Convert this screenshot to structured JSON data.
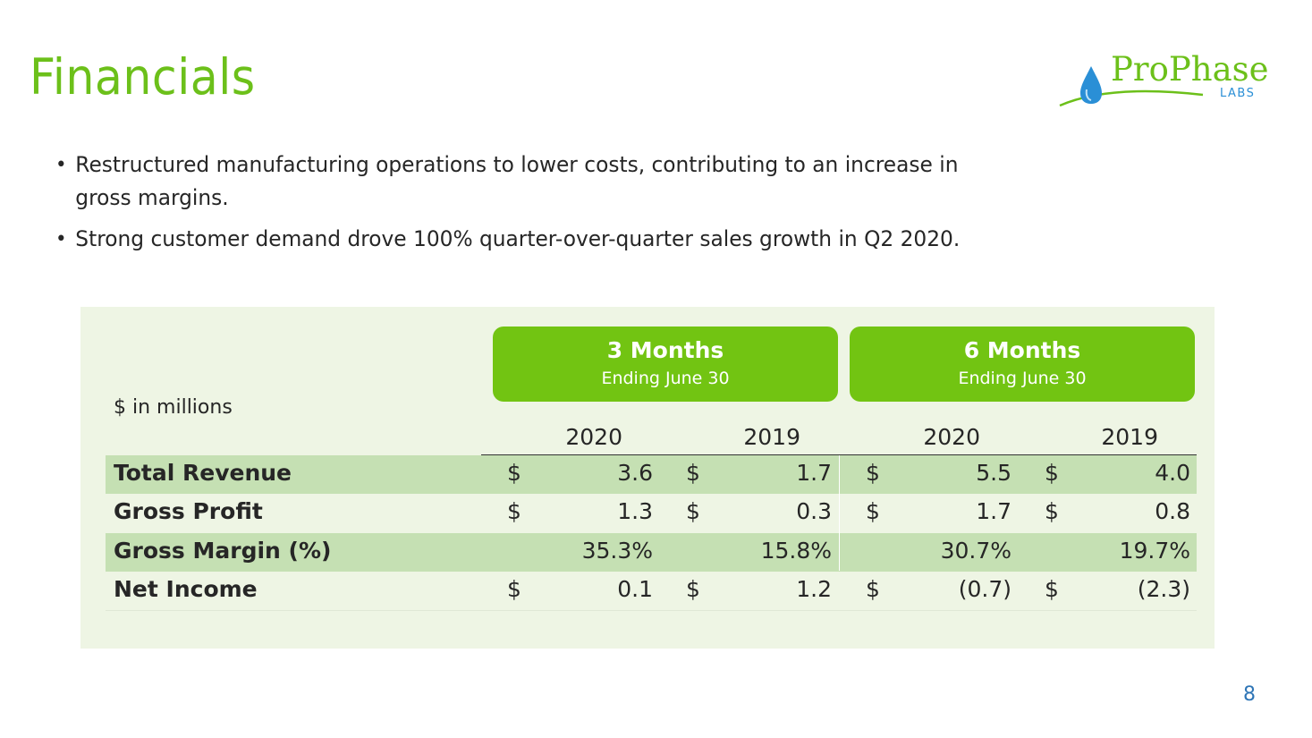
{
  "slide": {
    "title": "Financials",
    "page_number": "8",
    "logo": {
      "name": "ProPhase",
      "sub": "LABS",
      "colors": {
        "green": "#6cc01a",
        "blue": "#2a8fd6"
      }
    },
    "bullets": [
      "Restructured manufacturing operations to lower costs, contributing to an increase in gross margins.",
      "Strong customer demand drove 100% quarter-over-quarter sales growth in Q2 2020."
    ]
  },
  "table": {
    "units_label": "$ in millions",
    "periods": [
      {
        "title": "3 Months",
        "subtitle": "Ending June 30",
        "years": [
          "2020",
          "2019"
        ]
      },
      {
        "title": "6 Months",
        "subtitle": "Ending June 30",
        "years": [
          "2020",
          "2019"
        ]
      }
    ],
    "rows": [
      {
        "label": "Total Revenue",
        "shaded": true,
        "cells": [
          {
            "cur": "$",
            "val": "3.6"
          },
          {
            "cur": "$",
            "val": "1.7"
          },
          {
            "cur": "$",
            "val": "5.5"
          },
          {
            "cur": "$",
            "val": "4.0"
          }
        ]
      },
      {
        "label": "Gross Profit",
        "shaded": false,
        "cells": [
          {
            "cur": "$",
            "val": "1.3"
          },
          {
            "cur": "$",
            "val": "0.3"
          },
          {
            "cur": "$",
            "val": "1.7"
          },
          {
            "cur": "$",
            "val": "0.8"
          }
        ]
      },
      {
        "label": "Gross Margin (%)",
        "shaded": true,
        "cells": [
          {
            "cur": "",
            "val": "35.3%"
          },
          {
            "cur": "",
            "val": "15.8%"
          },
          {
            "cur": "",
            "val": "30.7%"
          },
          {
            "cur": "",
            "val": "19.7%"
          }
        ]
      },
      {
        "label": "Net Income",
        "shaded": false,
        "cells": [
          {
            "cur": "$",
            "val": "0.1"
          },
          {
            "cur": "$",
            "val": "1.2"
          },
          {
            "cur": "$",
            "val": "(0.7)"
          },
          {
            "cur": "$",
            "val": "(2.3)"
          }
        ]
      }
    ],
    "colors": {
      "header_bg": "#72c412",
      "panel_bg": "#eef5e4",
      "row_shade": "#c5e0b3"
    }
  }
}
